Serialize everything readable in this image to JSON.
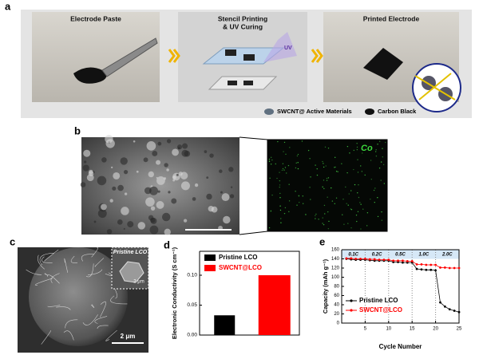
{
  "panel_labels": [
    "a",
    "b",
    "c",
    "d",
    "e"
  ],
  "panel_a": {
    "steps": [
      [
        "Electrode Paste"
      ],
      [
        "Stencil Printing",
        "& UV Curing"
      ],
      [
        "Printed Electrode"
      ]
    ],
    "uv_label": "UV",
    "legend": [
      "SWCNT@ Active Materials",
      "Carbon Black"
    ]
  },
  "panel_b": {
    "element_label": "Co"
  },
  "panel_c": {
    "inset_label": "Pristine LCO",
    "scale_bar": "2 μm",
    "inset_scale_bar": "2 μm"
  },
  "chart_data": [
    {
      "type": "bar",
      "y_label": "Electronic Conductivity (S cm⁻¹)",
      "categories": [
        null
      ],
      "series": [
        {
          "name": "Pristine LCO",
          "color": "#000000",
          "values": [
            0.033
          ]
        },
        {
          "name": "SWCNT@LCO",
          "color": "#ff0000",
          "values": [
            0.1
          ]
        }
      ],
      "ylim": [
        0,
        0.14
      ],
      "yticks": [
        {
          "value": 0,
          "label": "0.00"
        },
        {
          "value": 0.05,
          "label": "0.05"
        },
        {
          "value": 0.1,
          "label": "0.10"
        }
      ]
    },
    {
      "type": "line",
      "x_label": "Cycle Number",
      "y_label": "Capacity (mAh g⁻¹)",
      "rate_labels": [
        "0.1C",
        "0.2C",
        "0.5C",
        "1.0C",
        "2.0C"
      ],
      "x": [
        1,
        2,
        3,
        4,
        5,
        6,
        7,
        8,
        9,
        10,
        11,
        12,
        13,
        14,
        15,
        16,
        17,
        18,
        19,
        20,
        21,
        22,
        23,
        24,
        25
      ],
      "series": [
        {
          "name": "Pristine LCO",
          "color": "#000000",
          "values": [
            140,
            139,
            138,
            138,
            138,
            137,
            136,
            136,
            136,
            136,
            133,
            133,
            132,
            132,
            132,
            118,
            117,
            116,
            116,
            115,
            45,
            36,
            30,
            27,
            24
          ]
        },
        {
          "name": "SWCNT@LCO",
          "color": "#ff0000",
          "values": [
            141,
            141,
            140,
            140,
            140,
            139,
            139,
            138,
            138,
            138,
            136,
            136,
            136,
            135,
            135,
            128,
            128,
            127,
            127,
            127,
            121,
            121,
            120,
            120,
            120
          ]
        }
      ],
      "xlim": [
        0,
        25
      ],
      "xticks": [
        5,
        10,
        15,
        20,
        25
      ],
      "ylim": [
        0,
        160
      ],
      "yticks": [
        0,
        20,
        40,
        60,
        80,
        100,
        120,
        140,
        160
      ],
      "legend": "lower-left"
    }
  ]
}
